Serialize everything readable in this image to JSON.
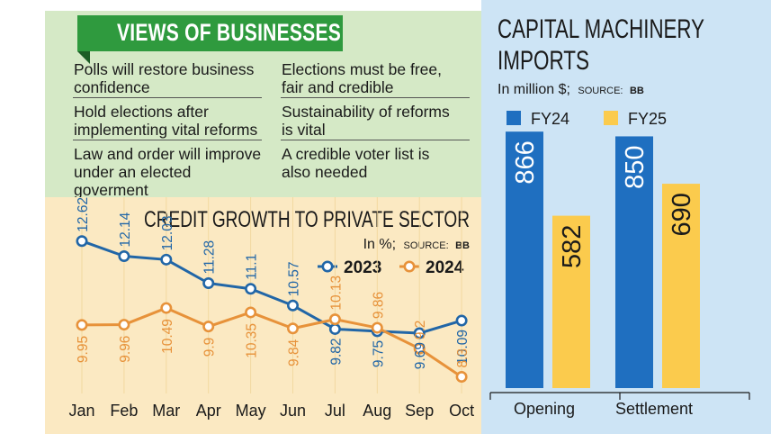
{
  "views": {
    "title": "VIEWS OF BUSINESSES",
    "left": [
      "Polls will restore business confidence",
      "Hold elections after implementing vital reforms",
      "Law and order will improve under an elected goverment"
    ],
    "right": [
      "Elections must be free, fair and credible",
      "Sustainability of reforms is vital",
      "A credible voter list is also needed"
    ]
  },
  "chart_data": [
    {
      "type": "line",
      "title": "CREDIT GROWTH TO PRIVATE SECTOR",
      "unit_label": "In %;",
      "source_label": "SOURCE:",
      "source": "BB",
      "categories": [
        "Jan",
        "Feb",
        "Mar",
        "Apr",
        "May",
        "Jun",
        "Jul",
        "Aug",
        "Sep",
        "Oct"
      ],
      "series": [
        {
          "name": "2023",
          "color": "#2166a7",
          "values": [
            12.62,
            12.14,
            12.03,
            11.28,
            11.1,
            10.57,
            9.82,
            9.75,
            9.69,
            10.09
          ],
          "labels": [
            "12.62",
            "12.14",
            "12.03",
            "11.28",
            "11.1",
            "10.57",
            "9.82",
            "9.75",
            "9.69",
            "10.09"
          ]
        },
        {
          "name": "2024",
          "color": "#e7923a",
          "values": [
            9.95,
            9.96,
            10.49,
            9.9,
            10.35,
            9.84,
            10.13,
            9.86,
            9.2,
            8.3
          ],
          "labels": [
            "9.95",
            "9.96",
            "10.49",
            "9.9",
            "10.35",
            "9.84",
            "10.13",
            "9.86",
            "9.2",
            "8.3"
          ]
        }
      ],
      "ylim": [
        8,
        13.5
      ],
      "legend_position": "top-right"
    },
    {
      "type": "bar",
      "title_lines": [
        "CAPITAL MACHINERY",
        "IMPORTS"
      ],
      "unit_label": "In million $;",
      "source_label": "SOURCE:",
      "source": "BB",
      "categories": [
        "Opening",
        "Settlement"
      ],
      "series": [
        {
          "name": "FY24",
          "color": "#1f6fc0",
          "values": [
            866,
            850
          ]
        },
        {
          "name": "FY25",
          "color": "#fbcb4d",
          "values": [
            582,
            690
          ]
        }
      ],
      "ylim": [
        0,
        900
      ],
      "legend_position": "top"
    }
  ]
}
